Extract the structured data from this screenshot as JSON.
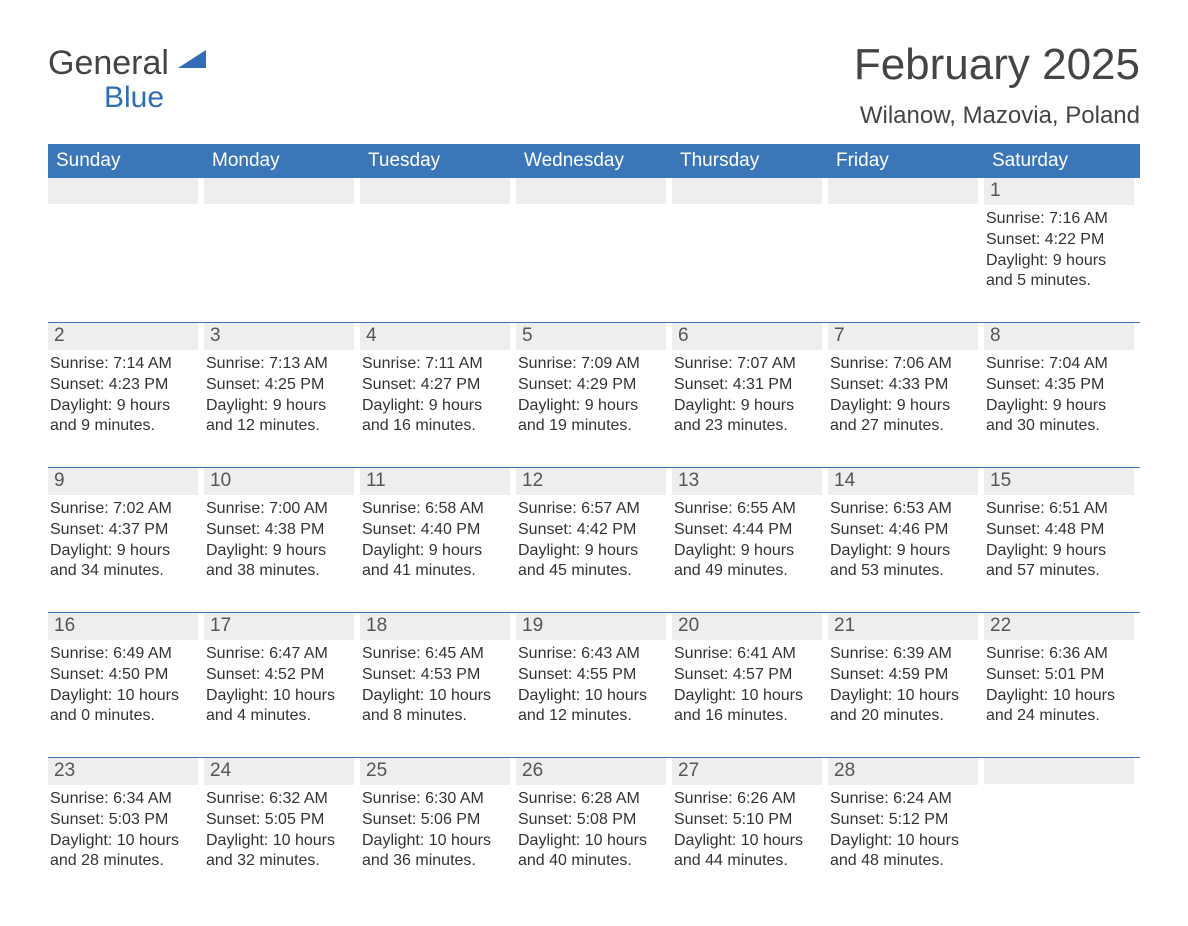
{
  "logo": {
    "line1": "General",
    "line2": "Blue",
    "mark_color": "#2f6eb5",
    "text_color_1": "#444444",
    "text_color_2": "#2f6eb5"
  },
  "title": "February 2025",
  "location": "Wilanow, Mazovia, Poland",
  "colors": {
    "header_bg": "#3a76b8",
    "header_fg": "#ffffff",
    "daynum_bg": "#eeeeee",
    "week_border": "#3a76b8",
    "body_text": "#333333",
    "background": "#ffffff"
  },
  "day_headers": [
    "Sunday",
    "Monday",
    "Tuesday",
    "Wednesday",
    "Thursday",
    "Friday",
    "Saturday"
  ],
  "weeks": [
    [
      {
        "day": "",
        "sunrise": "",
        "sunset": "",
        "daylight": ""
      },
      {
        "day": "",
        "sunrise": "",
        "sunset": "",
        "daylight": ""
      },
      {
        "day": "",
        "sunrise": "",
        "sunset": "",
        "daylight": ""
      },
      {
        "day": "",
        "sunrise": "",
        "sunset": "",
        "daylight": ""
      },
      {
        "day": "",
        "sunrise": "",
        "sunset": "",
        "daylight": ""
      },
      {
        "day": "",
        "sunrise": "",
        "sunset": "",
        "daylight": ""
      },
      {
        "day": "1",
        "sunrise": "Sunrise: 7:16 AM",
        "sunset": "Sunset: 4:22 PM",
        "daylight": "Daylight: 9 hours and 5 minutes."
      }
    ],
    [
      {
        "day": "2",
        "sunrise": "Sunrise: 7:14 AM",
        "sunset": "Sunset: 4:23 PM",
        "daylight": "Daylight: 9 hours and 9 minutes."
      },
      {
        "day": "3",
        "sunrise": "Sunrise: 7:13 AM",
        "sunset": "Sunset: 4:25 PM",
        "daylight": "Daylight: 9 hours and 12 minutes."
      },
      {
        "day": "4",
        "sunrise": "Sunrise: 7:11 AM",
        "sunset": "Sunset: 4:27 PM",
        "daylight": "Daylight: 9 hours and 16 minutes."
      },
      {
        "day": "5",
        "sunrise": "Sunrise: 7:09 AM",
        "sunset": "Sunset: 4:29 PM",
        "daylight": "Daylight: 9 hours and 19 minutes."
      },
      {
        "day": "6",
        "sunrise": "Sunrise: 7:07 AM",
        "sunset": "Sunset: 4:31 PM",
        "daylight": "Daylight: 9 hours and 23 minutes."
      },
      {
        "day": "7",
        "sunrise": "Sunrise: 7:06 AM",
        "sunset": "Sunset: 4:33 PM",
        "daylight": "Daylight: 9 hours and 27 minutes."
      },
      {
        "day": "8",
        "sunrise": "Sunrise: 7:04 AM",
        "sunset": "Sunset: 4:35 PM",
        "daylight": "Daylight: 9 hours and 30 minutes."
      }
    ],
    [
      {
        "day": "9",
        "sunrise": "Sunrise: 7:02 AM",
        "sunset": "Sunset: 4:37 PM",
        "daylight": "Daylight: 9 hours and 34 minutes."
      },
      {
        "day": "10",
        "sunrise": "Sunrise: 7:00 AM",
        "sunset": "Sunset: 4:38 PM",
        "daylight": "Daylight: 9 hours and 38 minutes."
      },
      {
        "day": "11",
        "sunrise": "Sunrise: 6:58 AM",
        "sunset": "Sunset: 4:40 PM",
        "daylight": "Daylight: 9 hours and 41 minutes."
      },
      {
        "day": "12",
        "sunrise": "Sunrise: 6:57 AM",
        "sunset": "Sunset: 4:42 PM",
        "daylight": "Daylight: 9 hours and 45 minutes."
      },
      {
        "day": "13",
        "sunrise": "Sunrise: 6:55 AM",
        "sunset": "Sunset: 4:44 PM",
        "daylight": "Daylight: 9 hours and 49 minutes."
      },
      {
        "day": "14",
        "sunrise": "Sunrise: 6:53 AM",
        "sunset": "Sunset: 4:46 PM",
        "daylight": "Daylight: 9 hours and 53 minutes."
      },
      {
        "day": "15",
        "sunrise": "Sunrise: 6:51 AM",
        "sunset": "Sunset: 4:48 PM",
        "daylight": "Daylight: 9 hours and 57 minutes."
      }
    ],
    [
      {
        "day": "16",
        "sunrise": "Sunrise: 6:49 AM",
        "sunset": "Sunset: 4:50 PM",
        "daylight": "Daylight: 10 hours and 0 minutes."
      },
      {
        "day": "17",
        "sunrise": "Sunrise: 6:47 AM",
        "sunset": "Sunset: 4:52 PM",
        "daylight": "Daylight: 10 hours and 4 minutes."
      },
      {
        "day": "18",
        "sunrise": "Sunrise: 6:45 AM",
        "sunset": "Sunset: 4:53 PM",
        "daylight": "Daylight: 10 hours and 8 minutes."
      },
      {
        "day": "19",
        "sunrise": "Sunrise: 6:43 AM",
        "sunset": "Sunset: 4:55 PM",
        "daylight": "Daylight: 10 hours and 12 minutes."
      },
      {
        "day": "20",
        "sunrise": "Sunrise: 6:41 AM",
        "sunset": "Sunset: 4:57 PM",
        "daylight": "Daylight: 10 hours and 16 minutes."
      },
      {
        "day": "21",
        "sunrise": "Sunrise: 6:39 AM",
        "sunset": "Sunset: 4:59 PM",
        "daylight": "Daylight: 10 hours and 20 minutes."
      },
      {
        "day": "22",
        "sunrise": "Sunrise: 6:36 AM",
        "sunset": "Sunset: 5:01 PM",
        "daylight": "Daylight: 10 hours and 24 minutes."
      }
    ],
    [
      {
        "day": "23",
        "sunrise": "Sunrise: 6:34 AM",
        "sunset": "Sunset: 5:03 PM",
        "daylight": "Daylight: 10 hours and 28 minutes."
      },
      {
        "day": "24",
        "sunrise": "Sunrise: 6:32 AM",
        "sunset": "Sunset: 5:05 PM",
        "daylight": "Daylight: 10 hours and 32 minutes."
      },
      {
        "day": "25",
        "sunrise": "Sunrise: 6:30 AM",
        "sunset": "Sunset: 5:06 PM",
        "daylight": "Daylight: 10 hours and 36 minutes."
      },
      {
        "day": "26",
        "sunrise": "Sunrise: 6:28 AM",
        "sunset": "Sunset: 5:08 PM",
        "daylight": "Daylight: 10 hours and 40 minutes."
      },
      {
        "day": "27",
        "sunrise": "Sunrise: 6:26 AM",
        "sunset": "Sunset: 5:10 PM",
        "daylight": "Daylight: 10 hours and 44 minutes."
      },
      {
        "day": "28",
        "sunrise": "Sunrise: 6:24 AM",
        "sunset": "Sunset: 5:12 PM",
        "daylight": "Daylight: 10 hours and 48 minutes."
      },
      {
        "day": "",
        "sunrise": "",
        "sunset": "",
        "daylight": ""
      }
    ]
  ]
}
